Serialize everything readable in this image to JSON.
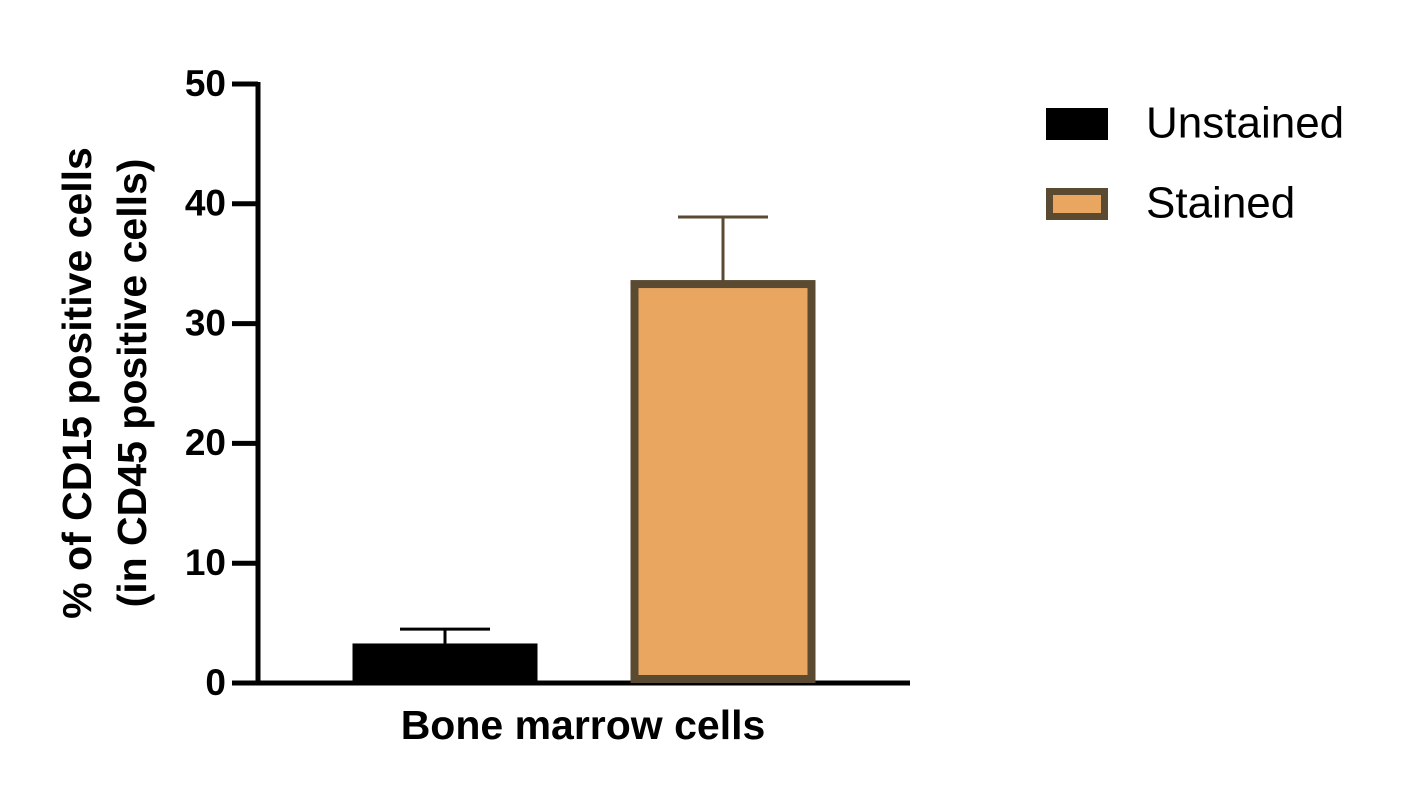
{
  "chart_data": {
    "type": "bar",
    "ylabel": [
      "% of CD15 positive cells",
      "(in CD45 positive cells)"
    ],
    "xlabel": "Bone marrow cells",
    "categories": [
      null
    ],
    "series": [
      {
        "name": "Unstained",
        "color": "#000000",
        "edgecolor": "#000000",
        "values": [
          3.3
        ],
        "errors": [
          1.2
        ]
      },
      {
        "name": "Stained",
        "color": "#e8a660",
        "edgecolor": "#5a4a32",
        "values": [
          33.3
        ],
        "errors": [
          5.6
        ]
      }
    ],
    "ylim": [
      0,
      50
    ],
    "yticks": [
      0,
      10,
      20,
      30,
      40,
      50
    ]
  }
}
